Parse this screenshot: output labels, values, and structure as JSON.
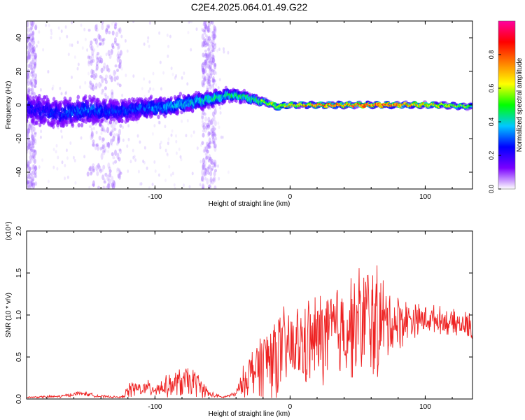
{
  "figure": {
    "title": "C2E4.2025.064.01.49.G22"
  },
  "chart_data": [
    {
      "type": "heatmap",
      "title": "C2E4.2025.064.01.49.G22",
      "xlabel": "Height of straight line (km)",
      "ylabel": "Frequency (Hz)",
      "xlim": [
        -195,
        135
      ],
      "ylim": [
        -50,
        50
      ],
      "x_ticks": [
        -100,
        0,
        100
      ],
      "y_ticks": [
        -40,
        -20,
        0,
        20,
        40
      ],
      "x_tick_labels": [
        "-100",
        "0",
        "100"
      ],
      "y_tick_labels": [
        "-40",
        "-20",
        "0",
        "20",
        "40"
      ],
      "colorbar": {
        "label": "Normalized spectral amplitude",
        "range": [
          0,
          1
        ],
        "ticks": [
          0.0,
          0.2,
          0.4,
          0.6,
          0.8
        ],
        "tick_labels": [
          "0.0",
          "0.2",
          "0.4",
          "0.6",
          "0.8"
        ],
        "colormap": [
          "#ffffff",
          "#7a00ff",
          "#0000ff",
          "#00c8ff",
          "#00ff00",
          "#ffff00",
          "#ff8000",
          "#ff0000",
          "#ff00a0"
        ]
      },
      "ridge": {
        "x": [
          -195,
          -170,
          -150,
          -130,
          -110,
          -90,
          -70,
          -55,
          -45,
          -35,
          -25,
          -15,
          -10,
          0,
          20,
          50,
          80,
          110,
          135
        ],
        "center_freq": [
          -2,
          -5,
          -3,
          -4,
          -2,
          -1,
          2,
          4,
          6,
          5,
          3,
          1,
          -1,
          0,
          0,
          0,
          0,
          0,
          -1
        ],
        "peak_amplitude": [
          0.25,
          0.3,
          0.35,
          0.3,
          0.35,
          0.4,
          0.45,
          0.5,
          0.5,
          0.55,
          0.6,
          0.6,
          0.65,
          0.7,
          0.85,
          0.9,
          0.85,
          0.7,
          0.6
        ],
        "spread_hz": [
          14,
          12,
          12,
          10,
          9,
          8,
          7,
          6,
          5,
          4,
          3,
          2.5,
          2.5,
          2,
          2,
          2,
          2,
          2,
          2
        ]
      },
      "noise_bands": [
        {
          "x_range": [
            -195,
            -188
          ],
          "amplitude": 0.12
        },
        {
          "x_range": [
            -150,
            -125
          ],
          "amplitude": 0.14
        },
        {
          "x_range": [
            -65,
            -55
          ],
          "amplitude": 0.1
        }
      ]
    },
    {
      "type": "line",
      "xlabel": "Height of straight line (km)",
      "ylabel": "SNR (10 * v/v)",
      "y_multiplier": "(x10⁴)",
      "xlim": [
        -195,
        135
      ],
      "ylim": [
        0.0,
        2.0
      ],
      "x_ticks": [
        -100,
        0,
        100
      ],
      "y_ticks": [
        0.0,
        0.5,
        1.0,
        1.5,
        2.0
      ],
      "x_tick_labels": [
        "-100",
        "0",
        "100"
      ],
      "y_tick_labels": [
        "0.0",
        "0.5",
        "1.0",
        "1.5",
        "2.0"
      ],
      "series": [
        {
          "color": "#ee2222",
          "x": [
            -195,
            -170,
            -155,
            -140,
            -125,
            -118,
            -110,
            -100,
            -90,
            -80,
            -70,
            -60,
            -50,
            -40,
            -35,
            -30,
            -25,
            -20,
            -15,
            -10,
            0,
            10,
            20,
            30,
            40,
            50,
            55,
            60,
            65,
            70,
            80,
            90,
            100,
            110,
            120,
            130,
            135
          ],
          "mean": [
            0.02,
            0.03,
            0.07,
            0.03,
            0.02,
            0.12,
            0.12,
            0.13,
            0.15,
            0.2,
            0.2,
            0.06,
            0.02,
            0.06,
            0.2,
            0.3,
            0.38,
            0.45,
            0.5,
            0.55,
            0.6,
            0.65,
            0.7,
            0.78,
            0.85,
            0.9,
            0.95,
            0.95,
            0.9,
            0.9,
            0.92,
            0.95,
            0.95,
            0.95,
            0.9,
            0.88,
            0.85
          ],
          "amplitude": [
            0.01,
            0.02,
            0.03,
            0.02,
            0.01,
            0.12,
            0.1,
            0.12,
            0.15,
            0.22,
            0.2,
            0.05,
            0.01,
            0.04,
            0.2,
            0.3,
            0.4,
            0.5,
            0.6,
            0.6,
            0.55,
            0.6,
            0.65,
            0.7,
            0.7,
            0.72,
            0.9,
            0.8,
            0.9,
            0.55,
            0.4,
            0.25,
            0.2,
            0.18,
            0.18,
            0.18,
            0.2
          ]
        }
      ]
    }
  ]
}
